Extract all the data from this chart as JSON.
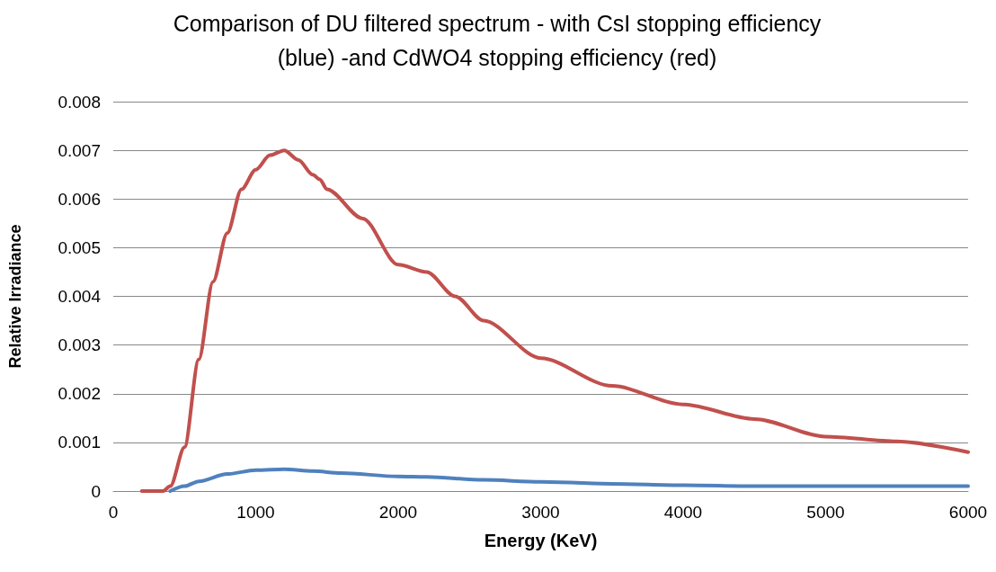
{
  "chart_data": {
    "type": "line",
    "title": "Comparison of DU filtered spectrum - with CsI stopping efficiency\n(blue) -and CdWO4 stopping efficiency (red)",
    "xlabel": "Energy (KeV)",
    "ylabel": "Relative Irradiance",
    "xlim": [
      0,
      6000
    ],
    "xticks": [
      0,
      1000,
      2000,
      3000,
      4000,
      5000,
      6000
    ],
    "ylim": [
      0,
      0.008
    ],
    "yticks": [
      0,
      0.001,
      0.002,
      0.003,
      0.004,
      0.005,
      0.006,
      0.007,
      0.008
    ],
    "grid": "y",
    "marker": "none",
    "line_style": "solid",
    "series": [
      {
        "color": "#c0504d",
        "x": [
          200,
          350,
          400,
          500,
          600,
          700,
          800,
          900,
          1000,
          1100,
          1200,
          1300,
          1400,
          1450,
          1500,
          1750,
          2000,
          2200,
          2400,
          2600,
          3000,
          3500,
          4000,
          4500,
          5000,
          5500,
          6000
        ],
        "values": [
          0,
          0,
          0.0001,
          0.0009,
          0.0027,
          0.0043,
          0.0053,
          0.0062,
          0.0066,
          0.0069,
          0.007,
          0.0068,
          0.0065,
          0.0064,
          0.0062,
          0.0056,
          0.00465,
          0.0045,
          0.004,
          0.0035,
          0.00273,
          0.00216,
          0.00178,
          0.00148,
          0.00112,
          0.00102,
          0.0008
        ]
      },
      {
        "color": "#4f81bd",
        "x": [
          400,
          500,
          600,
          800,
          1000,
          1200,
          1400,
          1600,
          2000,
          2200,
          2600,
          3000,
          3500,
          4000,
          4500,
          5000,
          5500,
          6000
        ],
        "values": [
          0,
          0.0001,
          0.0002,
          0.00035,
          0.00043,
          0.00045,
          0.00041,
          0.00037,
          0.0003,
          0.00029,
          0.00023,
          0.00019,
          0.00015,
          0.00012,
          0.0001,
          0.0001,
          0.0001,
          0.0001
        ]
      }
    ]
  }
}
